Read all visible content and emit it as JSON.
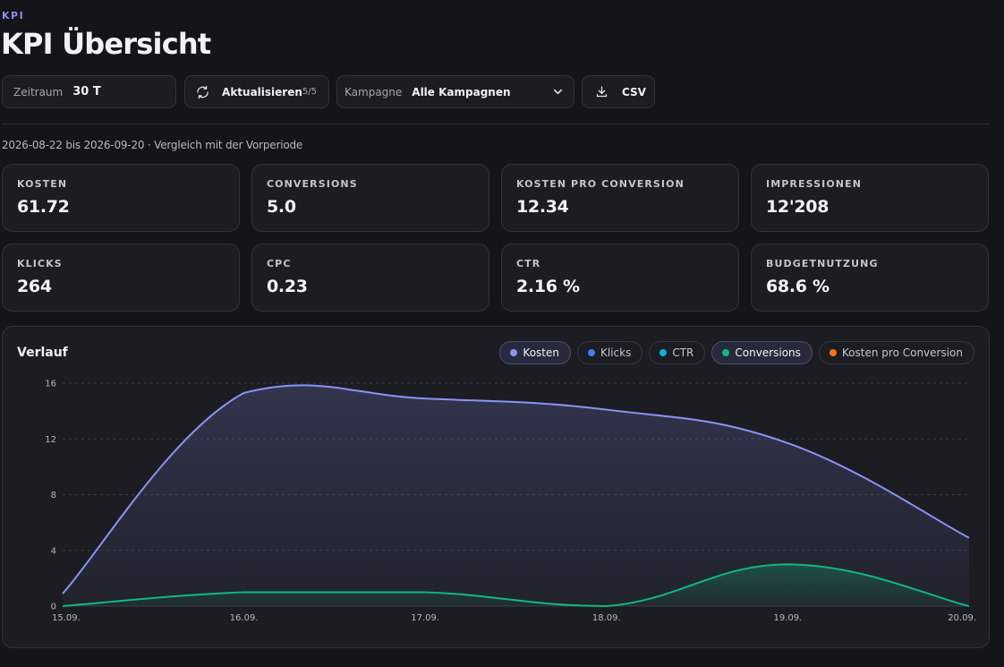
{
  "header": {
    "eyebrow": "KPI",
    "title": "KPI Übersicht"
  },
  "controls": {
    "range": {
      "label": "Zeitraum",
      "value": "30 T"
    },
    "refresh": {
      "label": "Aktualisieren",
      "count": "5/5"
    },
    "campaign": {
      "label": "Kampagne",
      "value": "Alle Kampagnen"
    },
    "export": {
      "label": "CSV"
    }
  },
  "period_info": "2026-08-22 bis 2026-09-20 · Vergleich mit der Vorperiode",
  "kpis": [
    {
      "label": "KOSTEN",
      "value": "61.72"
    },
    {
      "label": "CONVERSIONS",
      "value": "5.0"
    },
    {
      "label": "KOSTEN PRO CONVERSION",
      "value": "12.34"
    },
    {
      "label": "IMPRESSIONEN",
      "value": "12'208"
    },
    {
      "label": "KLICKS",
      "value": "264"
    },
    {
      "label": "CPC",
      "value": "0.23"
    },
    {
      "label": "CTR",
      "value": "2.16 %"
    },
    {
      "label": "BUDGETNUTZUNG",
      "value": "68.6 %"
    }
  ],
  "chart": {
    "title": "Verlauf",
    "toggles": [
      {
        "label": "Kosten",
        "color": "#8b93f5",
        "active": true
      },
      {
        "label": "Klicks",
        "color": "#3b82f6",
        "active": false
      },
      {
        "label": "CTR",
        "color": "#06b6d4",
        "active": false
      },
      {
        "label": "Conversions",
        "color": "#10b981",
        "active": true
      },
      {
        "label": "Kosten pro Conversion",
        "color": "#f97316",
        "active": false
      }
    ]
  },
  "chart_data": {
    "type": "area",
    "categories": [
      "15.09.",
      "16.09.",
      "17.09.",
      "18.09.",
      "19.09.",
      "20.09."
    ],
    "series": [
      {
        "name": "Kosten",
        "color": "#8b93f5",
        "values": [
          0.9,
          15.3,
          14.9,
          14.1,
          11.7,
          4.9
        ]
      },
      {
        "name": "Conversions",
        "color": "#10b981",
        "values": [
          0.0,
          1.0,
          1.0,
          0.0,
          3.0,
          0.0
        ]
      }
    ],
    "ylim": [
      0,
      16
    ],
    "yticks": [
      "0",
      "4",
      "8",
      "12",
      "16"
    ],
    "grid": true
  }
}
